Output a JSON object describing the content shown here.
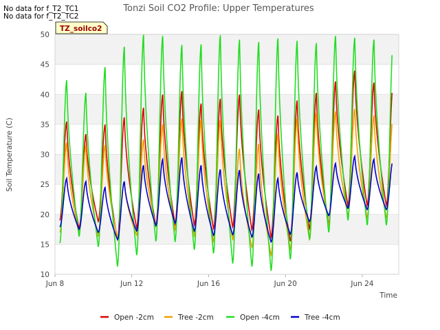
{
  "notes": [
    "No data for f_T2_TC1",
    "No data for f_T2_TC2"
  ],
  "chart_data": {
    "type": "line",
    "title": "Tonzi Soil CO2 Profile: Upper Temperatures",
    "xlabel": "Time",
    "ylabel": "Soil Temperature (C)",
    "ylim": [
      10,
      50
    ],
    "yticks": [
      10,
      15,
      20,
      25,
      30,
      35,
      40,
      45,
      50
    ],
    "xlim": [
      8,
      25.9
    ],
    "xticks": [
      {
        "x": 8,
        "label": "Jun 8"
      },
      {
        "x": 12,
        "label": "Jun 12"
      },
      {
        "x": 16,
        "label": "Jun 16"
      },
      {
        "x": 20,
        "label": "Jun 20"
      },
      {
        "x": 24,
        "label": "Jun 24"
      }
    ],
    "grid": "horizontal",
    "shaded_bands": [
      [
        15,
        20
      ],
      [
        25,
        30
      ],
      [
        35,
        40
      ],
      [
        45,
        50
      ]
    ],
    "site_label": "TZ_soilco2",
    "legend_position": "bottom",
    "series": [
      {
        "name": "Open -2cm",
        "color": "#dd0000",
        "days": [
          {
            "min": 19.0,
            "max": 35.5
          },
          {
            "min": 17.6,
            "max": 33.4
          },
          {
            "min": 18.8,
            "max": 35.0
          },
          {
            "min": 15.8,
            "max": 36.2
          },
          {
            "min": 17.7,
            "max": 37.8
          },
          {
            "min": 18.1,
            "max": 40.0
          },
          {
            "min": 18.3,
            "max": 40.6
          },
          {
            "min": 18.2,
            "max": 38.5
          },
          {
            "min": 17.6,
            "max": 39.3
          },
          {
            "min": 17.9,
            "max": 40.0
          },
          {
            "min": 17.4,
            "max": 37.5
          },
          {
            "min": 16.2,
            "max": 36.5
          },
          {
            "min": 15.5,
            "max": 39.0
          },
          {
            "min": 17.6,
            "max": 40.3
          },
          {
            "min": 18.3,
            "max": 42.2
          },
          {
            "min": 21.5,
            "max": 44.0
          },
          {
            "min": 21.5,
            "max": 42.0
          }
        ]
      },
      {
        "name": "Tree -2cm",
        "color": "#f0a000",
        "days": [
          {
            "min": 17.0,
            "max": 32.0
          },
          {
            "min": 16.8,
            "max": 31.5
          },
          {
            "min": 16.4,
            "max": 31.6
          },
          {
            "min": 16.2,
            "max": 25.5
          },
          {
            "min": 16.5,
            "max": 32.5
          },
          {
            "min": 18.0,
            "max": 35.0
          },
          {
            "min": 17.4,
            "max": 36.0
          },
          {
            "min": 16.4,
            "max": 35.8
          },
          {
            "min": 15.5,
            "max": 35.8
          },
          {
            "min": 15.8,
            "max": 31.0
          },
          {
            "min": 14.5,
            "max": 31.8
          },
          {
            "min": 13.2,
            "max": 33.5
          },
          {
            "min": 14.2,
            "max": 36.0
          },
          {
            "min": 15.8,
            "max": 37.0
          },
          {
            "min": 18.2,
            "max": 37.2
          },
          {
            "min": 19.8,
            "max": 37.6
          },
          {
            "min": 19.5,
            "max": 36.5
          }
        ]
      },
      {
        "name": "Open -4cm",
        "color": "#22dd22",
        "days": [
          {
            "min": 15.2,
            "max": 42.4
          },
          {
            "min": 16.3,
            "max": 40.3
          },
          {
            "min": 14.6,
            "max": 44.6
          },
          {
            "min": 11.3,
            "max": 48.0
          },
          {
            "min": 13.2,
            "max": 50.0
          },
          {
            "min": 15.5,
            "max": 49.8
          },
          {
            "min": 15.4,
            "max": 48.3
          },
          {
            "min": 14.1,
            "max": 48.4
          },
          {
            "min": 13.5,
            "max": 49.9
          },
          {
            "min": 11.8,
            "max": 49.2
          },
          {
            "min": 11.3,
            "max": 48.8
          },
          {
            "min": 10.6,
            "max": 49.4
          },
          {
            "min": 12.5,
            "max": 49.0
          },
          {
            "min": 15.8,
            "max": 48.6
          },
          {
            "min": 17.0,
            "max": 49.8
          },
          {
            "min": 19.0,
            "max": 49.5
          },
          {
            "min": 18.2,
            "max": 49.2
          }
        ]
      },
      {
        "name": "Tree -4cm",
        "color": "#0000cc",
        "days": [
          {
            "min": 17.9,
            "max": 26.0
          },
          {
            "min": 17.5,
            "max": 25.5
          },
          {
            "min": 17.0,
            "max": 24.5
          },
          {
            "min": 15.8,
            "max": 25.5
          },
          {
            "min": 17.2,
            "max": 28.2
          },
          {
            "min": 18.1,
            "max": 29.2
          },
          {
            "min": 18.5,
            "max": 29.5
          },
          {
            "min": 17.2,
            "max": 28.2
          },
          {
            "min": 16.5,
            "max": 27.5
          },
          {
            "min": 16.6,
            "max": 27.4
          },
          {
            "min": 16.2,
            "max": 26.8
          },
          {
            "min": 15.4,
            "max": 26.0
          },
          {
            "min": 16.7,
            "max": 27.0
          },
          {
            "min": 18.8,
            "max": 28.0
          },
          {
            "min": 19.8,
            "max": 28.5
          },
          {
            "min": 21.0,
            "max": 29.7
          },
          {
            "min": 20.8,
            "max": 29.2
          }
        ]
      }
    ]
  }
}
